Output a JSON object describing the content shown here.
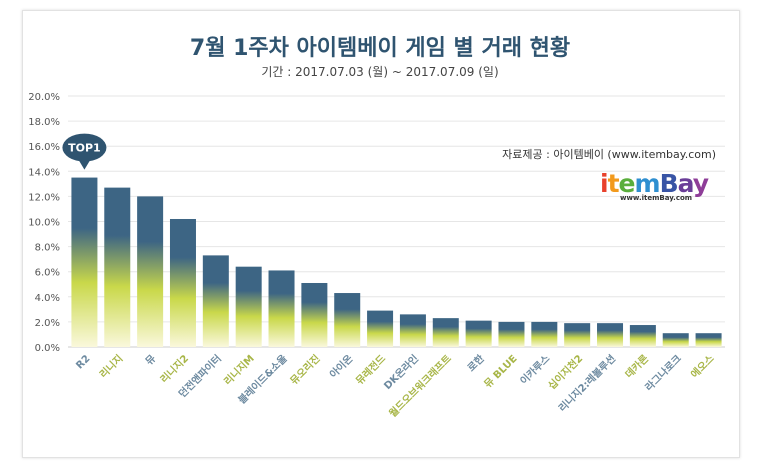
{
  "title": "7월 1주차 아이템베이 게임 별 거래 현황",
  "subtitle": "기간 : 2017.07.03 (월) ~ 2017.07.09 (일)",
  "source": "자료제공 : 아이템베이 (www.itembay.com)",
  "logo": {
    "text": "itemBay",
    "url_text": "www.itemBay.com"
  },
  "annotation": "TOP1",
  "colors": {
    "bar_top": "#3d6584",
    "bar_mid": "#c9d84a",
    "bar_bottom": "#faf8dc",
    "label_a": "#6d8aa0",
    "label_b": "#a8b648",
    "callout": "#2f5470"
  },
  "chart_data": {
    "type": "bar",
    "title": "7월 1주차 아이템베이 게임 별 거래 현황",
    "categories": [
      "R2",
      "리니지",
      "뮤",
      "리니지2",
      "던전앤파이터",
      "리니지M",
      "블레이드&소울",
      "뮤오리진",
      "아이온",
      "뮤레전드",
      "DK온라인",
      "월드오브워크래프트",
      "로한",
      "뮤 BLUE",
      "이카루스",
      "십이지천2",
      "리니지2:레볼루션",
      "데카론",
      "라그나로크",
      "에오스"
    ],
    "values": [
      13.5,
      12.7,
      12.0,
      10.2,
      7.3,
      6.4,
      6.1,
      5.1,
      4.3,
      2.9,
      2.6,
      2.3,
      2.1,
      2.0,
      2.0,
      1.9,
      1.9,
      1.75,
      1.1,
      1.1
    ],
    "unit": "%",
    "ylim": [
      0,
      20
    ],
    "yticks": [
      "0.0%",
      "2.0%",
      "4.0%",
      "6.0%",
      "8.0%",
      "10.0%",
      "12.0%",
      "14.0%",
      "16.0%",
      "18.0%",
      "20.0%"
    ],
    "grid": true,
    "xlabel": "",
    "ylabel": ""
  }
}
